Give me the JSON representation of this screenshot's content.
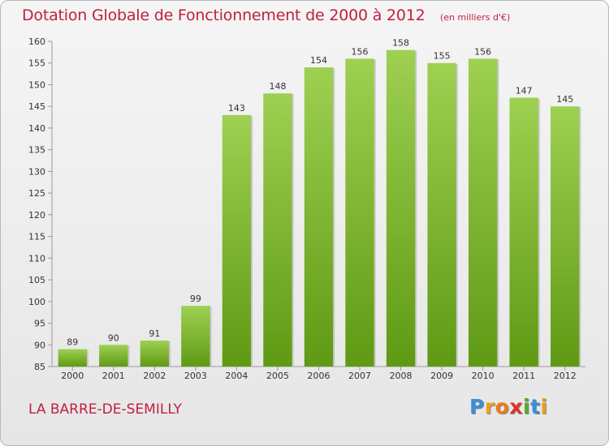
{
  "header": {
    "title": "Dotation Globale de Fonctionnement de 2000 à 2012",
    "unit": "(en milliers d'€)"
  },
  "footer": {
    "place": "LA BARRE-DE-SEMILLY",
    "logo": {
      "letters": [
        "P",
        "r",
        "o",
        "x",
        "i",
        "t",
        "i"
      ],
      "colors": [
        "#3a8fd6",
        "#e9a21a",
        "#e87d1e",
        "#d9352b",
        "#5aa832",
        "#3a8fd6",
        "#e9a21a"
      ]
    }
  },
  "colors": {
    "bar_top": "#9ed052",
    "bar_bottom": "#5f9a14",
    "accent": "#c0203f"
  },
  "chart_data": {
    "type": "bar",
    "categories": [
      "2000",
      "2001",
      "2002",
      "2003",
      "2004",
      "2005",
      "2006",
      "2007",
      "2008",
      "2009",
      "2010",
      "2011",
      "2012"
    ],
    "values": [
      89,
      90,
      91,
      99,
      143,
      148,
      154,
      156,
      158,
      155,
      156,
      147,
      145
    ],
    "ylim": [
      85,
      160
    ],
    "yticks": [
      85,
      90,
      95,
      100,
      105,
      110,
      115,
      120,
      125,
      130,
      135,
      140,
      145,
      150,
      155,
      160
    ],
    "grid": false,
    "legend": "none"
  }
}
